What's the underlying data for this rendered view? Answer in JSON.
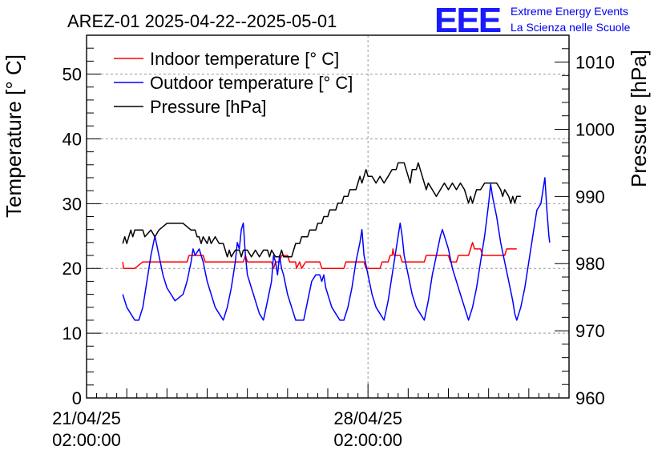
{
  "logo": {
    "mark": "EEE",
    "line1": "Extreme Energy Events",
    "line2": "La Scienza nelle Scuole"
  },
  "chart_data": {
    "type": "line",
    "title": "AREZ-01 2025-04-22--2025-05-01",
    "ylabel_left": "Temperature [° C]",
    "ylabel_right": "Pressure [hPa]",
    "xlim": [
      0,
      12
    ],
    "ylim_left": [
      0,
      56
    ],
    "ylim_right": [
      960,
      1014
    ],
    "grid": true,
    "legend_position": "top-left",
    "x_unit": "days since 21/04/25 02:00:00",
    "x_ticks": [
      {
        "x": 0,
        "date": "21/04/25",
        "time": "02:00:00"
      },
      {
        "x": 7,
        "date": "28/04/25",
        "time": "02:00:00"
      }
    ],
    "y_ticks_left": [
      0,
      10,
      20,
      30,
      40,
      50
    ],
    "y_ticks_right": [
      960,
      970,
      980,
      990,
      1000,
      1010
    ],
    "colors": {
      "indoor": "#ff0000",
      "outdoor": "#0000ff",
      "pressure": "#000000"
    },
    "series": [
      {
        "name": "Indoor temperature [° C]",
        "axis": "left",
        "key": "indoor",
        "points": [
          [
            0.9,
            21
          ],
          [
            0.92,
            20
          ],
          [
            1.2,
            20
          ],
          [
            1.4,
            21
          ],
          [
            2.5,
            21
          ],
          [
            2.55,
            22
          ],
          [
            2.9,
            22
          ],
          [
            2.95,
            21
          ],
          [
            3.9,
            21
          ],
          [
            3.95,
            22
          ],
          [
            4.0,
            21
          ],
          [
            4.6,
            21
          ],
          [
            4.65,
            20
          ],
          [
            4.7,
            21
          ],
          [
            4.8,
            21
          ],
          [
            4.85,
            22
          ],
          [
            5.0,
            22
          ],
          [
            5.05,
            21
          ],
          [
            5.2,
            21
          ],
          [
            5.22,
            20
          ],
          [
            5.3,
            21
          ],
          [
            5.35,
            20
          ],
          [
            5.45,
            21
          ],
          [
            5.8,
            21
          ],
          [
            5.85,
            20
          ],
          [
            6.4,
            20
          ],
          [
            6.45,
            21
          ],
          [
            6.9,
            21
          ],
          [
            6.95,
            20
          ],
          [
            7.3,
            20
          ],
          [
            7.35,
            21
          ],
          [
            7.5,
            21
          ],
          [
            7.55,
            22
          ],
          [
            7.6,
            22
          ],
          [
            7.62,
            23
          ],
          [
            7.65,
            22
          ],
          [
            7.8,
            22
          ],
          [
            7.85,
            21
          ],
          [
            8.4,
            21
          ],
          [
            8.45,
            22
          ],
          [
            9.0,
            22
          ],
          [
            9.05,
            21
          ],
          [
            9.2,
            21
          ],
          [
            9.25,
            22
          ],
          [
            9.5,
            22
          ],
          [
            9.55,
            23
          ],
          [
            9.6,
            24
          ],
          [
            9.65,
            23
          ],
          [
            9.8,
            23
          ],
          [
            9.85,
            22
          ],
          [
            10.4,
            22
          ],
          [
            10.45,
            23
          ],
          [
            10.7,
            23
          ]
        ]
      },
      {
        "name": "Outdoor temperature [° C]",
        "axis": "left",
        "key": "outdoor",
        "points": [
          [
            0.9,
            16
          ],
          [
            1.0,
            14
          ],
          [
            1.1,
            13
          ],
          [
            1.2,
            12
          ],
          [
            1.3,
            12
          ],
          [
            1.4,
            14
          ],
          [
            1.5,
            18
          ],
          [
            1.6,
            22
          ],
          [
            1.7,
            25
          ],
          [
            1.8,
            22
          ],
          [
            1.9,
            19
          ],
          [
            2.0,
            17
          ],
          [
            2.1,
            16
          ],
          [
            2.2,
            15
          ],
          [
            2.4,
            16
          ],
          [
            2.5,
            18
          ],
          [
            2.6,
            21
          ],
          [
            2.65,
            23
          ],
          [
            2.7,
            22
          ],
          [
            2.8,
            23
          ],
          [
            2.85,
            22
          ],
          [
            2.9,
            21
          ],
          [
            3.0,
            18
          ],
          [
            3.1,
            16
          ],
          [
            3.2,
            14
          ],
          [
            3.3,
            13
          ],
          [
            3.4,
            12
          ],
          [
            3.5,
            14
          ],
          [
            3.6,
            17
          ],
          [
            3.7,
            21
          ],
          [
            3.75,
            24
          ],
          [
            3.8,
            23
          ],
          [
            3.85,
            26
          ],
          [
            3.9,
            27
          ],
          [
            3.95,
            22
          ],
          [
            4.0,
            19
          ],
          [
            4.1,
            17
          ],
          [
            4.2,
            15
          ],
          [
            4.3,
            13
          ],
          [
            4.4,
            12
          ],
          [
            4.5,
            15
          ],
          [
            4.6,
            18
          ],
          [
            4.65,
            22
          ],
          [
            4.7,
            21
          ],
          [
            4.75,
            19
          ],
          [
            4.8,
            22
          ],
          [
            4.85,
            20
          ],
          [
            4.9,
            19
          ],
          [
            5.0,
            16
          ],
          [
            5.1,
            14
          ],
          [
            5.2,
            12
          ],
          [
            5.3,
            12
          ],
          [
            5.4,
            12
          ],
          [
            5.5,
            15
          ],
          [
            5.6,
            18
          ],
          [
            5.7,
            19
          ],
          [
            5.8,
            19
          ],
          [
            5.85,
            18
          ],
          [
            5.9,
            19
          ],
          [
            5.95,
            17
          ],
          [
            6.0,
            16
          ],
          [
            6.1,
            14
          ],
          [
            6.2,
            13
          ],
          [
            6.3,
            12
          ],
          [
            6.4,
            12
          ],
          [
            6.5,
            14
          ],
          [
            6.6,
            17
          ],
          [
            6.7,
            21
          ],
          [
            6.8,
            24
          ],
          [
            6.85,
            26
          ],
          [
            6.9,
            22
          ],
          [
            7.0,
            19
          ],
          [
            7.1,
            16
          ],
          [
            7.2,
            14
          ],
          [
            7.3,
            13
          ],
          [
            7.4,
            12
          ],
          [
            7.5,
            15
          ],
          [
            7.6,
            19
          ],
          [
            7.7,
            23
          ],
          [
            7.75,
            25
          ],
          [
            7.8,
            27
          ],
          [
            7.85,
            25
          ],
          [
            7.9,
            22
          ],
          [
            8.0,
            19
          ],
          [
            8.1,
            16
          ],
          [
            8.2,
            14
          ],
          [
            8.3,
            13
          ],
          [
            8.4,
            12
          ],
          [
            8.5,
            15
          ],
          [
            8.6,
            19
          ],
          [
            8.7,
            22
          ],
          [
            8.8,
            25
          ],
          [
            8.85,
            26
          ],
          [
            8.9,
            25
          ],
          [
            9.0,
            23
          ],
          [
            9.1,
            20
          ],
          [
            9.2,
            18
          ],
          [
            9.3,
            16
          ],
          [
            9.4,
            14
          ],
          [
            9.5,
            12
          ],
          [
            9.6,
            14
          ],
          [
            9.7,
            17
          ],
          [
            9.8,
            21
          ],
          [
            9.9,
            25
          ],
          [
            10.0,
            30
          ],
          [
            10.05,
            33
          ],
          [
            10.1,
            31
          ],
          [
            10.2,
            28
          ],
          [
            10.3,
            24
          ],
          [
            10.4,
            21
          ],
          [
            10.5,
            18
          ],
          [
            10.6,
            15
          ],
          [
            10.65,
            13
          ],
          [
            10.7,
            12
          ],
          [
            10.8,
            14
          ],
          [
            10.9,
            17
          ],
          [
            11.0,
            21
          ],
          [
            11.1,
            25
          ],
          [
            11.2,
            29
          ],
          [
            11.3,
            30
          ],
          [
            11.35,
            32
          ],
          [
            11.4,
            34
          ],
          [
            11.45,
            29
          ],
          [
            11.5,
            25
          ],
          [
            11.52,
            24
          ]
        ]
      },
      {
        "name": "Pressure [hPa]",
        "axis": "right",
        "key": "pressure",
        "points": [
          [
            0.9,
            983
          ],
          [
            0.95,
            984
          ],
          [
            1.0,
            983
          ],
          [
            1.05,
            984
          ],
          [
            1.1,
            985
          ],
          [
            1.15,
            984
          ],
          [
            1.2,
            985
          ],
          [
            1.4,
            985
          ],
          [
            1.45,
            984
          ],
          [
            1.6,
            985
          ],
          [
            1.7,
            984
          ],
          [
            1.8,
            985
          ],
          [
            2.0,
            986
          ],
          [
            2.2,
            986
          ],
          [
            2.4,
            986
          ],
          [
            2.6,
            985
          ],
          [
            2.7,
            985
          ],
          [
            2.75,
            984
          ],
          [
            2.8,
            984
          ],
          [
            2.85,
            983
          ],
          [
            2.9,
            984
          ],
          [
            3.0,
            983
          ],
          [
            3.05,
            984
          ],
          [
            3.1,
            983
          ],
          [
            3.2,
            984
          ],
          [
            3.3,
            983
          ],
          [
            3.4,
            983
          ],
          [
            3.45,
            982
          ],
          [
            3.5,
            981
          ],
          [
            3.55,
            982
          ],
          [
            3.6,
            981
          ],
          [
            3.7,
            982
          ],
          [
            3.8,
            982
          ],
          [
            3.85,
            981
          ],
          [
            3.9,
            982
          ],
          [
            4.0,
            982
          ],
          [
            4.1,
            981
          ],
          [
            4.2,
            982
          ],
          [
            4.3,
            981
          ],
          [
            4.4,
            982
          ],
          [
            4.5,
            982
          ],
          [
            4.55,
            981
          ],
          [
            4.6,
            982
          ],
          [
            4.7,
            981
          ],
          [
            4.8,
            981
          ],
          [
            4.85,
            982
          ],
          [
            4.9,
            981
          ],
          [
            5.0,
            981
          ],
          [
            5.1,
            981
          ],
          [
            5.15,
            982
          ],
          [
            5.2,
            983
          ],
          [
            5.3,
            983
          ],
          [
            5.35,
            984
          ],
          [
            5.5,
            984
          ],
          [
            5.55,
            985
          ],
          [
            5.7,
            985
          ],
          [
            5.75,
            986
          ],
          [
            5.85,
            986
          ],
          [
            5.9,
            987
          ],
          [
            6.0,
            987
          ],
          [
            6.05,
            988
          ],
          [
            6.2,
            988
          ],
          [
            6.25,
            989
          ],
          [
            6.35,
            989
          ],
          [
            6.4,
            990
          ],
          [
            6.5,
            990
          ],
          [
            6.55,
            991
          ],
          [
            6.7,
            991
          ],
          [
            6.75,
            992
          ],
          [
            6.8,
            993
          ],
          [
            6.85,
            992
          ],
          [
            6.9,
            993
          ],
          [
            6.95,
            994
          ],
          [
            7.0,
            993
          ],
          [
            7.1,
            993
          ],
          [
            7.2,
            992
          ],
          [
            7.3,
            993
          ],
          [
            7.4,
            992
          ],
          [
            7.5,
            993
          ],
          [
            7.6,
            994
          ],
          [
            7.7,
            994
          ],
          [
            7.75,
            995
          ],
          [
            7.9,
            995
          ],
          [
            7.95,
            994
          ],
          [
            8.0,
            993
          ],
          [
            8.05,
            992
          ],
          [
            8.1,
            994
          ],
          [
            8.2,
            994
          ],
          [
            8.25,
            995
          ],
          [
            8.3,
            994
          ],
          [
            8.35,
            993
          ],
          [
            8.4,
            992
          ],
          [
            8.45,
            991
          ],
          [
            8.5,
            992
          ],
          [
            8.6,
            991
          ],
          [
            8.7,
            990
          ],
          [
            8.8,
            991
          ],
          [
            8.9,
            992
          ],
          [
            9.0,
            991
          ],
          [
            9.1,
            992
          ],
          [
            9.2,
            991
          ],
          [
            9.3,
            992
          ],
          [
            9.4,
            991
          ],
          [
            9.45,
            990
          ],
          [
            9.5,
            989
          ],
          [
            9.55,
            990
          ],
          [
            9.6,
            989
          ],
          [
            9.65,
            990
          ],
          [
            9.7,
            991
          ],
          [
            9.8,
            991
          ],
          [
            9.9,
            992
          ],
          [
            10.0,
            992
          ],
          [
            10.2,
            992
          ],
          [
            10.3,
            991
          ],
          [
            10.35,
            990
          ],
          [
            10.4,
            991
          ],
          [
            10.5,
            990
          ],
          [
            10.55,
            989
          ],
          [
            10.6,
            990
          ],
          [
            10.65,
            989
          ],
          [
            10.7,
            990
          ],
          [
            10.8,
            990
          ]
        ]
      }
    ]
  }
}
